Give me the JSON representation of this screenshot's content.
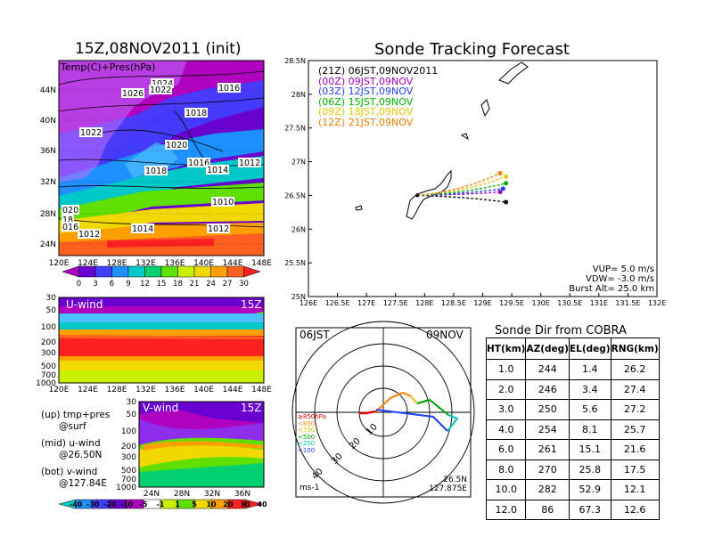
{
  "titles": {
    "init": "15Z,08NOV2011 (init)",
    "forecast": "Sonde Tracking Forecast",
    "dir": "Sonde Dir from COBRA"
  },
  "map_panel": {
    "label": "Temp(C)+Pres(hPa)",
    "lat_ticks": [
      "44N",
      "40N",
      "36N",
      "32N",
      "28N",
      "24N"
    ],
    "lon_ticks": [
      "120E",
      "124E",
      "128E",
      "132E",
      "136E",
      "140E",
      "144E",
      "148E"
    ],
    "isobars": [
      "1024",
      "1022",
      "1026",
      "1016",
      "1018",
      "1022",
      "1020",
      "1016",
      "1014",
      "1012",
      "1018",
      "1010",
      "1012",
      "1014",
      "020",
      "18",
      "016",
      "1012"
    ],
    "colorbar": [
      "0",
      "3",
      "6",
      "9",
      "12",
      "15",
      "18",
      "21",
      "24",
      "27",
      "30"
    ],
    "colors": [
      "#b000c0",
      "#6a00d0",
      "#4040ff",
      "#1e90ff",
      "#00c8c8",
      "#00d070",
      "#60e000",
      "#c8f000",
      "#f0d800",
      "#ffa000",
      "#ff6020",
      "#ff2020"
    ]
  },
  "u_panel": {
    "label": "U-wind",
    "time": "15Z",
    "y_ticks": [
      "30",
      "50",
      "100",
      "200",
      "300",
      "500",
      "700",
      "1000"
    ],
    "x_ticks": [
      "120E",
      "124E",
      "128E",
      "132E",
      "136E",
      "140E",
      "144E",
      "148E"
    ]
  },
  "v_panel": {
    "label": "V-wind",
    "time": "15Z",
    "y_ticks": [
      "30",
      "50",
      "100",
      "200",
      "300",
      "500",
      "700",
      "1000"
    ],
    "x_ticks": [
      "24N",
      "28N",
      "32N",
      "36N"
    ],
    "colorbar": [
      "-40",
      "-30",
      "-20",
      "-10",
      "-5",
      "-1",
      "1",
      "5",
      "10",
      "20",
      "30",
      "40"
    ]
  },
  "explain": [
    [
      "(up) tmp+pres",
      "@surf"
    ],
    [
      "(mid) u-wind",
      "@26.50N"
    ],
    [
      "(bot) v-wind",
      "@127.84E"
    ]
  ],
  "forecast_panel": {
    "y_ticks": [
      "28.5N",
      "28N",
      "27.5N",
      "27N",
      "26.5N",
      "26N",
      "25.5N",
      "25N"
    ],
    "x_ticks": [
      "126E",
      "126.5E",
      "127E",
      "127.5E",
      "128E",
      "128.5E",
      "129E",
      "129.5E",
      "130E",
      "130.5E",
      "131E",
      "131.5E",
      "132E"
    ],
    "legend": [
      {
        "label": "(21Z)  06JST,09NOV2011",
        "color": "#000000"
      },
      {
        "label": "(00Z)  09JST,09NOV",
        "color": "#a000c0"
      },
      {
        "label": "(03Z)  12JST,09NOV",
        "color": "#2040ff"
      },
      {
        "label": "(06Z)  15JST,09NOV",
        "color": "#00b000"
      },
      {
        "label": "(09Z)  18JST,09NOV",
        "color": "#e8c800"
      },
      {
        "label": "(12Z)  21JST,09NOV",
        "color": "#f08000"
      }
    ],
    "params": [
      "VUP=  5.0  m/s",
      "VDW= -3.0  m/s",
      "Burst Alt=  25.0  km"
    ]
  },
  "chart_data": {
    "type": "scatter",
    "title": "Sonde Tracking Forecast",
    "xlim": [
      126,
      132
    ],
    "ylim": [
      25,
      28.5
    ],
    "start": {
      "lon": 127.875,
      "lat": 26.5
    },
    "series": [
      {
        "name": "(21Z)  06JST,09NOV2011",
        "end": [
          129.4,
          26.4
        ]
      },
      {
        "name": "(00Z)  09JST,09NOV",
        "end": [
          129.3,
          26.55
        ]
      },
      {
        "name": "(03Z)  12JST,09NOV",
        "end": [
          129.35,
          26.6
        ]
      },
      {
        "name": "(06Z)  15JST,09NOV",
        "end": [
          129.4,
          26.68
        ]
      },
      {
        "name": "(09Z)  18JST,09NOV",
        "end": [
          129.4,
          26.78
        ]
      },
      {
        "name": "(12Z)  21JST,09NOV",
        "end": [
          129.3,
          26.83
        ]
      }
    ]
  },
  "polar": {
    "left": "06JST",
    "right": "09NOV",
    "unit": "ms-1",
    "loc": [
      "26.5N",
      "127.875E"
    ],
    "rings": [
      "10",
      "20",
      "30",
      "40"
    ],
    "levels": [
      "≥850hPa",
      "<850",
      "<700",
      "<500",
      "<250",
      "<100"
    ],
    "level_colors": [
      "#e00000",
      "#ff8000",
      "#e0c000",
      "#00a000",
      "#00c0c0",
      "#2040ff"
    ]
  },
  "table": {
    "headers": [
      "HT(km)",
      "AZ(deg)",
      "EL(deg)",
      "RNG(km)"
    ],
    "rows": [
      [
        "1.0",
        "244",
        "1.4",
        "26.2"
      ],
      [
        "2.0",
        "246",
        "3.4",
        "27.4"
      ],
      [
        "3.0",
        "250",
        "5.6",
        "27.2"
      ],
      [
        "4.0",
        "254",
        "8.1",
        "25.7"
      ],
      [
        "6.0",
        "261",
        "15.1",
        "21.6"
      ],
      [
        "8.0",
        "270",
        "25.8",
        "17.5"
      ],
      [
        "10.0",
        "282",
        "52.9",
        "12.1"
      ],
      [
        "12.0",
        "86",
        "67.3",
        "12.6"
      ]
    ]
  }
}
